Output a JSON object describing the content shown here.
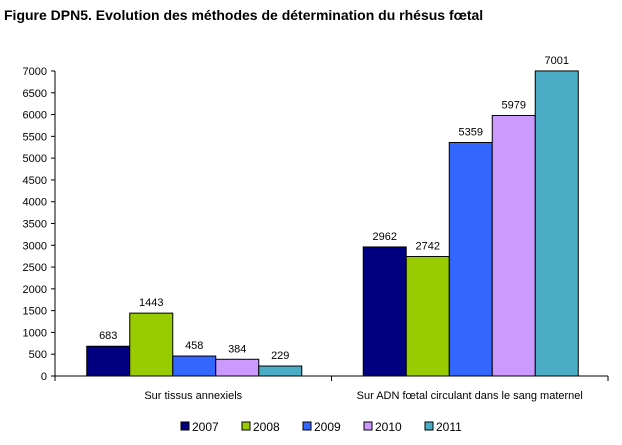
{
  "chart_data": {
    "type": "bar",
    "title": "Figure DPN5. Evolution des méthodes de détermination du rhésus fœtal",
    "xlabel": "",
    "ylabel": "",
    "ylim": [
      0,
      7000
    ],
    "y_ticks": [
      "0",
      "500",
      "1000",
      "1500",
      "2000",
      "2500",
      "3000",
      "3500",
      "4000",
      "4500",
      "5000",
      "5500",
      "6000",
      "6500",
      "7000"
    ],
    "categories": [
      "Sur tissus annexiels",
      "Sur ADN fœtal circulant dans le sang maternel"
    ],
    "series": [
      {
        "name": "2007",
        "color": "#000080",
        "values": [
          683,
          2962
        ]
      },
      {
        "name": "2008",
        "color": "#99CC00",
        "values": [
          1443,
          2742
        ]
      },
      {
        "name": "2009",
        "color": "#3366FF",
        "values": [
          458,
          5359
        ]
      },
      {
        "name": "2010",
        "color": "#CC99FF",
        "values": [
          384,
          5979
        ]
      },
      {
        "name": "2011",
        "color": "#4BACC6",
        "values": [
          229,
          7001
        ]
      }
    ],
    "data_labels": true,
    "grid": false,
    "legend_position": "bottom"
  }
}
